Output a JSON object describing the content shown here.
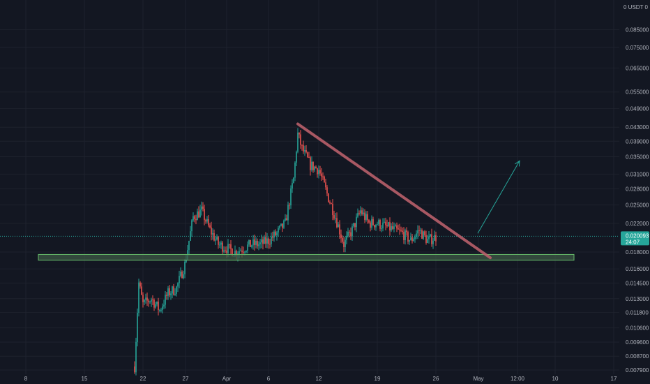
{
  "colors": {
    "background": "#131722",
    "grid": "#1e222d",
    "axis_text": "#b2b5be",
    "up": "#26a69a",
    "down": "#ef5350",
    "trendline": "#b95f6a",
    "support_fill": "#3d5a45",
    "support_border": "#66bb6a",
    "arrow": "#26a69a",
    "price_tag": "#26a69a",
    "current_line": "#26a69a"
  },
  "chart_data": {
    "type": "candlestick",
    "currency_label": "0 USDT 0",
    "y_axis": {
      "scale": "log",
      "ticks": [
        "0.085000",
        "0.075000",
        "0.065000",
        "0.055000",
        "0.049000",
        "0.043000",
        "0.039000",
        "0.035000",
        "0.031000",
        "0.028000",
        "0.025000",
        "0.022000",
        "0.018000",
        "0.016000",
        "0.014500",
        "0.013000",
        "0.011800",
        "0.010600",
        "0.009600",
        "0.008700",
        "0.007900"
      ]
    },
    "x_axis": {
      "ticks": [
        "8",
        "15",
        "22",
        "27",
        "Apr",
        "6",
        "12",
        "19",
        "26",
        "May",
        "12:00",
        "10",
        "17"
      ]
    },
    "current_price": {
      "value": "0.020093",
      "countdown": "24:07"
    },
    "price_path": [
      [
        13,
        0.0081
      ],
      [
        13.5,
        0.0145
      ],
      [
        14,
        0.0125
      ],
      [
        15,
        0.013
      ],
      [
        16,
        0.012
      ],
      [
        17,
        0.0135
      ],
      [
        18,
        0.014
      ],
      [
        19,
        0.0165
      ],
      [
        20,
        0.023
      ],
      [
        21,
        0.024
      ],
      [
        22,
        0.021
      ],
      [
        23,
        0.019
      ],
      [
        24,
        0.0185
      ],
      [
        25,
        0.018
      ],
      [
        26,
        0.0185
      ],
      [
        27,
        0.019
      ],
      [
        28,
        0.019
      ],
      [
        29,
        0.0195
      ],
      [
        30,
        0.0205
      ],
      [
        31,
        0.022
      ],
      [
        32,
        0.03
      ],
      [
        32.5,
        0.041
      ],
      [
        33,
        0.037
      ],
      [
        34,
        0.033
      ],
      [
        35,
        0.032
      ],
      [
        36,
        0.027
      ],
      [
        37,
        0.023
      ],
      [
        38,
        0.019
      ],
      [
        39,
        0.021
      ],
      [
        40,
        0.024
      ],
      [
        41,
        0.022
      ],
      [
        42,
        0.022
      ],
      [
        43,
        0.0215
      ],
      [
        44,
        0.021
      ],
      [
        45,
        0.0205
      ],
      [
        46,
        0.0195
      ],
      [
        47,
        0.021
      ],
      [
        48,
        0.0195
      ],
      [
        49,
        0.02
      ]
    ],
    "annotations": {
      "trendline": {
        "from": [
          32.5,
          0.044
        ],
        "to": [
          55.5,
          0.0173
        ]
      },
      "support_zone": {
        "from_x": 1.5,
        "to_x": 65.5,
        "low": 0.017,
        "high": 0.0177
      },
      "arrow": {
        "from": [
          54,
          0.0205
        ],
        "to": [
          59,
          0.034
        ]
      }
    }
  }
}
